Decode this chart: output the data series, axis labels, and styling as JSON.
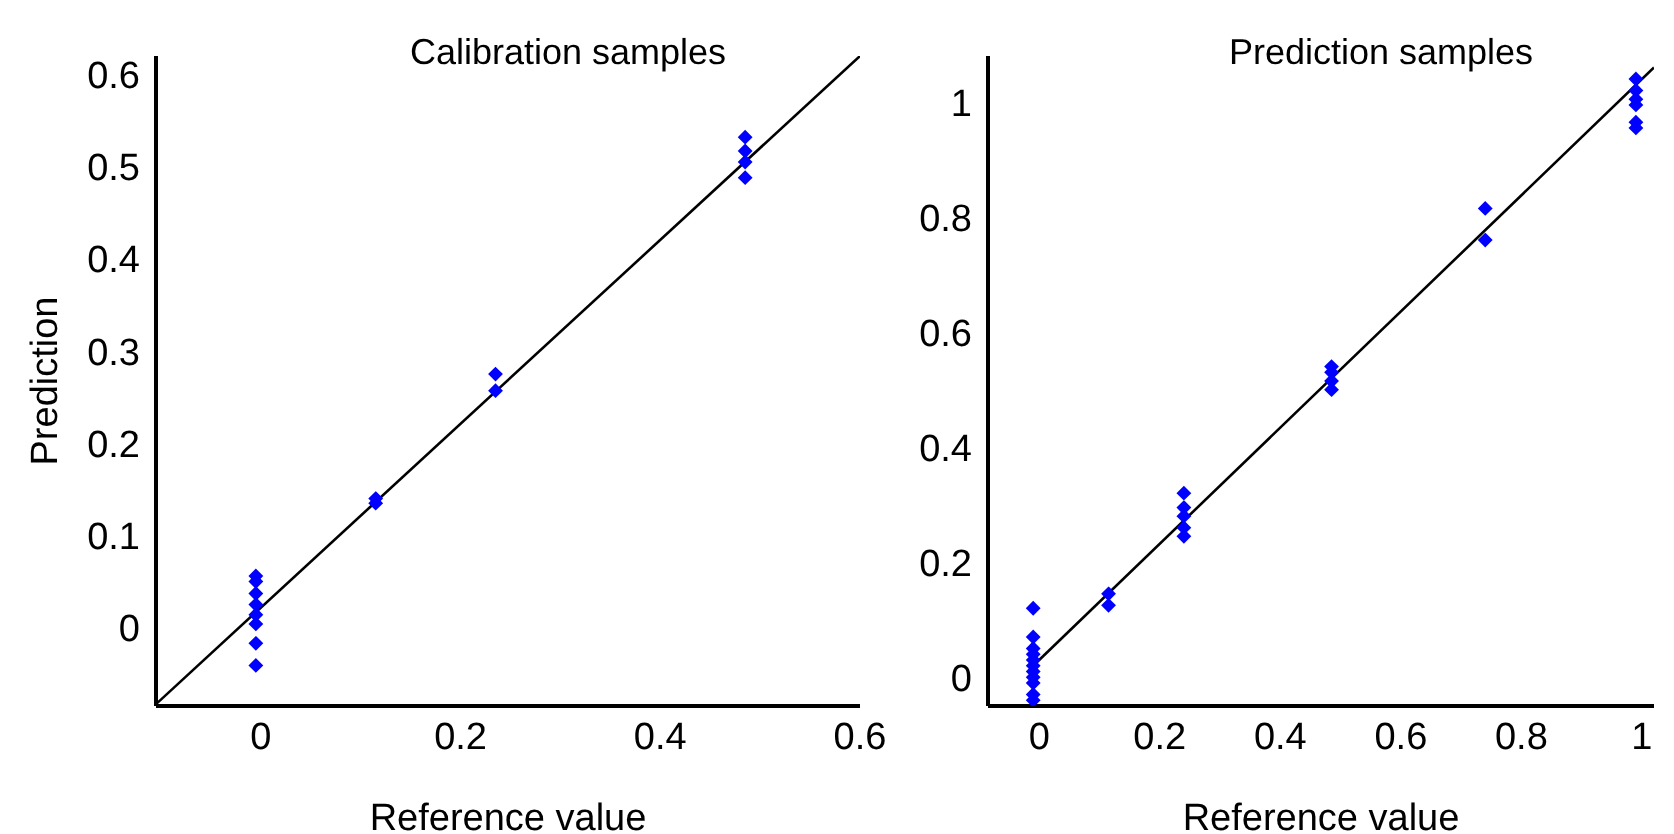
{
  "chart_data": [
    {
      "type": "scatter",
      "title": "Calibration samples",
      "xlabel": "Reference value",
      "ylabel": "Prediction",
      "xlim": [
        -0.105,
        0.6
      ],
      "ylim": [
        -0.085,
        0.62
      ],
      "xticks": [
        0,
        0.2,
        0.4,
        0.6
      ],
      "yticks": [
        0,
        0.1,
        0.2,
        0.3,
        0.4,
        0.5,
        0.6
      ],
      "grid": false,
      "series": [
        {
          "color": "#0000ff",
          "marker": "diamond",
          "x": [
            -0.005,
            -0.005,
            -0.005,
            -0.005,
            -0.005,
            -0.005,
            -0.005,
            -0.005,
            0.115,
            0.115,
            0.235,
            0.235,
            0.485,
            0.485,
            0.485,
            0.485
          ],
          "values": [
            0.056,
            0.05,
            0.037,
            0.025,
            0.014,
            0.004,
            -0.017,
            -0.041,
            0.14,
            0.135,
            0.275,
            0.257,
            0.532,
            0.517,
            0.505,
            0.488
          ]
        },
        {
          "type": "line",
          "color": "#000000",
          "marker": "none",
          "x": [
            -0.105,
            0.6
          ],
          "values": [
            -0.083,
            0.62
          ]
        }
      ]
    },
    {
      "type": "scatter",
      "title": "Prediction samples",
      "xlabel": "Reference value",
      "xlim": [
        -0.085,
        1.02
      ],
      "ylim": [
        -0.05,
        1.08
      ],
      "xticks": [
        0,
        0.2,
        0.4,
        0.6,
        0.8,
        1
      ],
      "yticks": [
        0,
        0.2,
        0.4,
        0.6,
        0.8,
        1
      ],
      "grid": false,
      "series": [
        {
          "color": "#0000ff",
          "marker": "diamond",
          "x": [
            -0.01,
            -0.01,
            -0.01,
            -0.01,
            -0.01,
            -0.01,
            -0.01,
            -0.01,
            -0.01,
            -0.01,
            -0.01,
            0.115,
            0.115,
            0.24,
            0.24,
            0.24,
            0.24,
            0.24,
            0.485,
            0.485,
            0.485,
            0.485,
            0.74,
            0.74,
            0.99,
            0.99,
            0.99,
            0.99,
            0.99,
            0.99
          ],
          "values": [
            0.12,
            0.07,
            0.05,
            0.04,
            0.03,
            0.02,
            0.01,
            0,
            -0.01,
            -0.03,
            -0.04,
            0.145,
            0.125,
            0.32,
            0.295,
            0.28,
            0.26,
            0.245,
            0.54,
            0.53,
            0.515,
            0.5,
            0.815,
            0.76,
            1.04,
            1.02,
            1.005,
            0.995,
            0.965,
            0.955
          ]
        },
        {
          "type": "line",
          "color": "#000000",
          "marker": "none",
          "x": [
            -0.01,
            1.02
          ],
          "values": [
            0.02,
            1.06
          ]
        }
      ]
    }
  ]
}
